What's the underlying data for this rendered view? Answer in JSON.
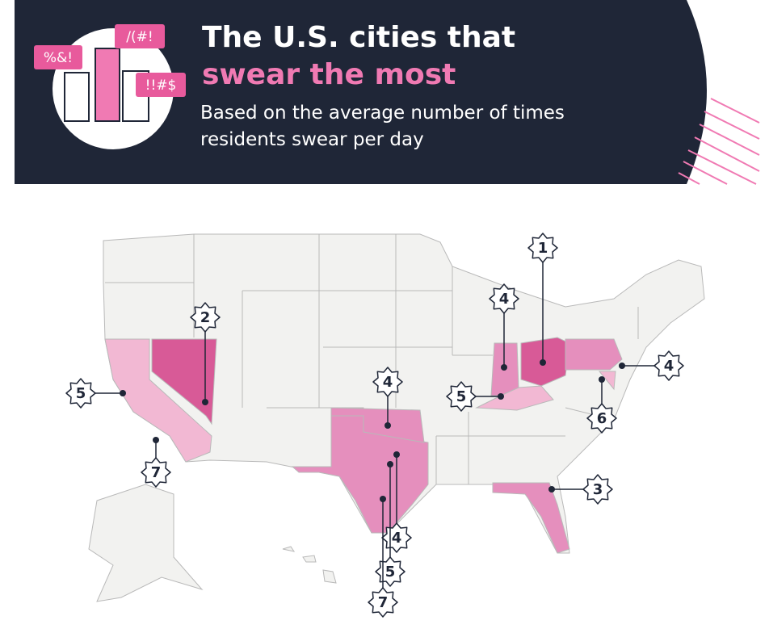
{
  "header": {
    "title_plain": "The U.S. cities that",
    "title_highlight": "swear the most",
    "subtitle": "Based on the average number of times residents swear per day",
    "icon_texts": [
      "%&!",
      "/(#!",
      "!!#$"
    ]
  },
  "markers": [
    {
      "rank": 1
    },
    {
      "rank": 2
    },
    {
      "rank": 4
    },
    {
      "rank": 5
    },
    {
      "rank": 4
    },
    {
      "rank": 5
    },
    {
      "rank": 4
    },
    {
      "rank": 6
    },
    {
      "rank": 7
    },
    {
      "rank": 3
    },
    {
      "rank": 4
    },
    {
      "rank": 5
    },
    {
      "rank": 7
    }
  ]
}
